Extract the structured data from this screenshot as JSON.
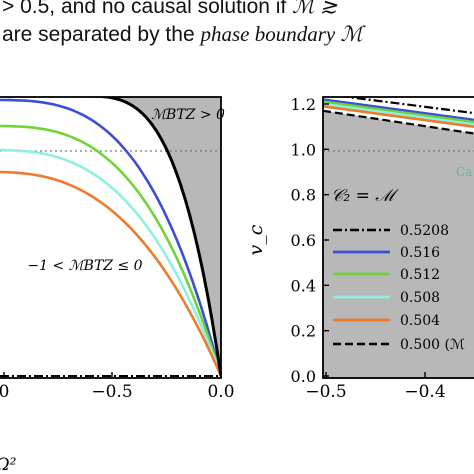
{
  "caption": {
    "line1_pre": "> 0.5, and no causal solution if ",
    "line1_symbol": "ℳ ≳",
    "line2_pre": "are separated by the ",
    "line2_italic": "phase boundary ℳ"
  },
  "chart_data": [
    {
      "type": "line",
      "xlabel": "Ω²",
      "xticks": [
        "0",
        "−0.5",
        "0.0"
      ],
      "xlim": [
        -1.0,
        0.0
      ],
      "region_labels": {
        "shaded": "ℳBTZ > 0",
        "middle": "−1 < ℳBTZ ≤ 0"
      },
      "series": [
        {
          "color": "#3a4fd6"
        },
        {
          "color": "#6fd33a"
        },
        {
          "color": "#8ff0e0"
        },
        {
          "color": "#f07a2c"
        },
        {
          "color": "#000000"
        }
      ],
      "grid": false,
      "colors": {
        "shade": "#b8b8b8"
      }
    },
    {
      "type": "line",
      "ylabel": "v_c",
      "yticks": [
        "0.0",
        "0.2",
        "0.4",
        "0.6",
        "0.8",
        "1.0",
        "1.2"
      ],
      "xticks": [
        "−0.5",
        "−0.4"
      ],
      "ylim": [
        -0.05,
        1.25
      ],
      "region_label": "Ca",
      "legend": {
        "title": "𝒞₂ = ℳ",
        "placement": "right",
        "entries": [
          {
            "label": "0.5208",
            "style": "dashdot",
            "color": "#000000"
          },
          {
            "label": "0.516",
            "style": "solid",
            "color": "#3a4fd6"
          },
          {
            "label": "0.512",
            "style": "solid",
            "color": "#6fd33a"
          },
          {
            "label": "0.508",
            "style": "solid",
            "color": "#8ff0e0"
          },
          {
            "label": "0.504",
            "style": "solid",
            "color": "#f07a2c"
          },
          {
            "label": "0.500 (ℳ",
            "style": "dashed",
            "color": "#000000"
          }
        ]
      },
      "colors": {
        "shade": "#b8b8b8"
      }
    }
  ]
}
